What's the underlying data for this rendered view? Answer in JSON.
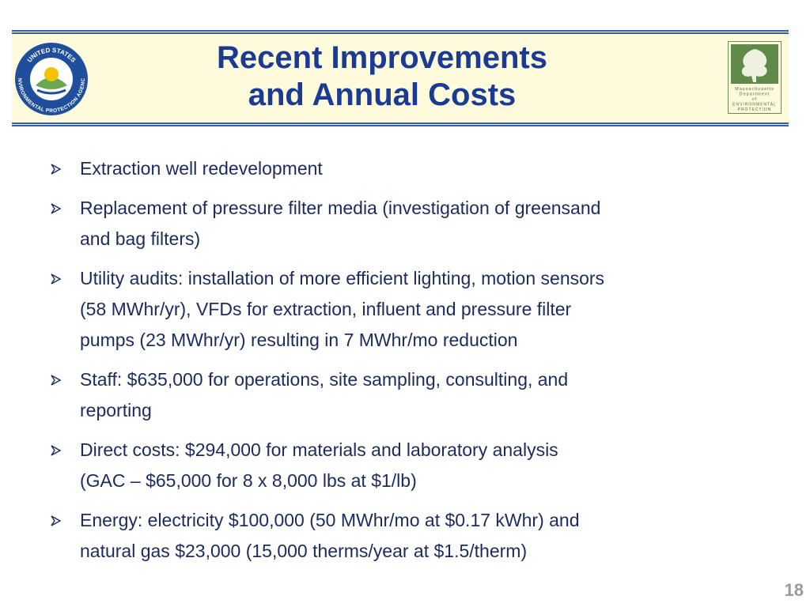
{
  "header": {
    "title_lines": [
      "Recent Improvements",
      "and Annual Costs"
    ],
    "left_logo": {
      "top_text": "UNITED STATES",
      "bottom_text": "ENVIRONMENTAL PROTECTION AGENCY"
    },
    "right_logo": {
      "lines": [
        "Massachusetts",
        "Department",
        "of",
        "ENVIRONMENTAL",
        "PROTECTION"
      ]
    }
  },
  "bullets": [
    [
      "Extraction well redevelopment"
    ],
    [
      "Replacement of pressure filter media (investigation of greensand",
      "and bag filters)"
    ],
    [
      "Utility audits: installation of more efficient lighting, motion sensors",
      "(58 MWhr/yr), VFDs for extraction, influent and pressure filter",
      "pumps (23 MWhr/yr) resulting in 7 MWhr/mo reduction"
    ],
    [
      "Staff: $635,000 for operations, site sampling, consulting, and",
      "reporting"
    ],
    [
      "Direct costs: $294,000 for materials and laboratory analysis",
      "(GAC – $65,000 for 8 x 8,000 lbs at $1/lb)"
    ],
    [
      "Energy: electricity $100,000 (50 MWhr/mo at $0.17 kWhr) and",
      "natural gas $23,000 (15,000 therms/year at $1.5/therm)"
    ]
  ],
  "page_number": "18"
}
